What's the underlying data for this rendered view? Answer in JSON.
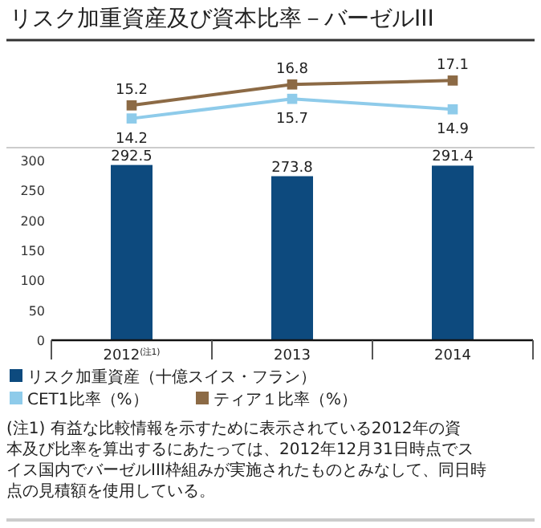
{
  "chart_data": [
    {
      "type": "line",
      "title": "リスク加重資産及び資本比率－バーゼルIII",
      "categories": [
        null,
        null,
        null
      ],
      "series": [
        {
          "name": "CET1比率（%）",
          "color": "#8ecbea",
          "values": [
            14.2,
            15.7,
            14.9
          ]
        },
        {
          "name": "ティア１比率（%）",
          "color": "#8c6a45",
          "values": [
            15.2,
            16.8,
            17.1
          ]
        }
      ],
      "data_labels": true,
      "marker": "square",
      "legend": "bottom"
    },
    {
      "type": "bar",
      "categories": [
        "2012$^{(注1)}$",
        "2013",
        "2014"
      ],
      "series": [
        {
          "name": "リスク加重資産（十億スイス・フラン）",
          "color": "#0d4a7e",
          "values": [
            292.5,
            273.8,
            291.4
          ]
        }
      ],
      "ylim": [
        0,
        300
      ],
      "yticks": [
        0,
        50,
        100,
        150,
        200,
        250,
        300
      ],
      "data_labels": true,
      "legend": "bottom",
      "annotations": [
        "(注1) 有益な比較情報を示すために表示されている2012年の資本及び比率を算出するにあたっては、2012年12月31日時点でスイス国内でバーゼルIII枠組みが実施されたものとみなして、同日時点の見積額を使用している。"
      ]
    }
  ]
}
